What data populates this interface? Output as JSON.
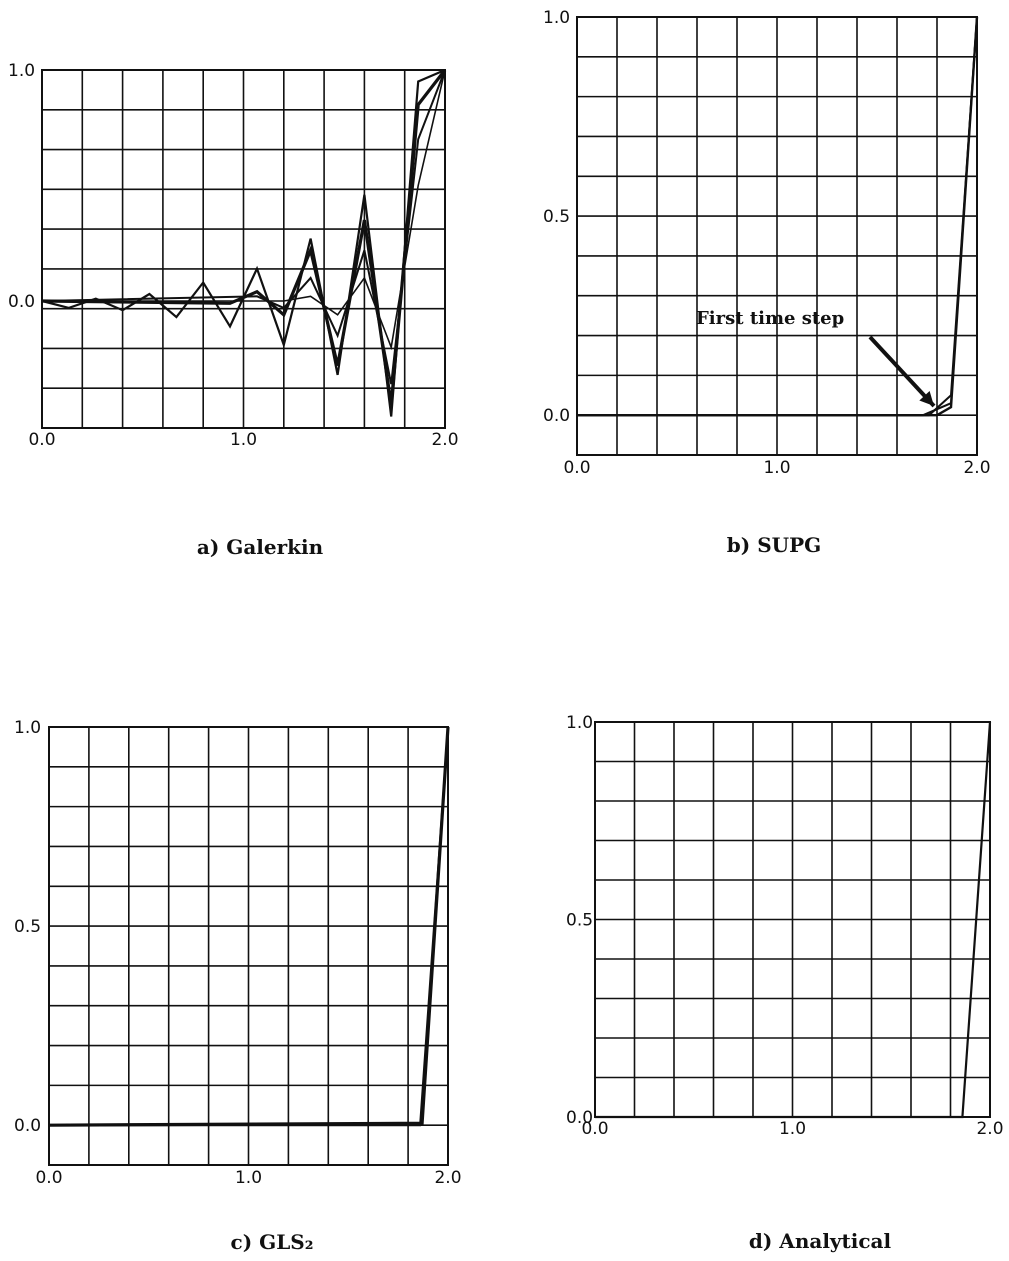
{
  "chart_data": [
    {
      "type": "line",
      "caption": "a) Galerkin",
      "xlim": [
        0.0,
        2.0
      ],
      "ylim": [
        -0.55,
        1.0
      ],
      "x_ticks": [
        "0.0",
        "1.0",
        "2.0"
      ],
      "y_ticks": [
        {
          "value": 1.0,
          "label": "1.0"
        },
        {
          "value": 0.0,
          "label": "0.0"
        }
      ],
      "grid": true,
      "series": [
        {
          "x": [
            0.0,
            0.133,
            0.267,
            0.4,
            0.533,
            0.667,
            0.8,
            0.933,
            1.067,
            1.2,
            1.333,
            1.467,
            1.6,
            1.733,
            1.867,
            2.0
          ],
          "values": [
            0.0,
            -0.03,
            0.01,
            -0.04,
            0.03,
            -0.07,
            0.08,
            -0.11,
            0.14,
            -0.19,
            0.27,
            -0.32,
            0.46,
            -0.5,
            0.95,
            1.0
          ]
        },
        {
          "x": [
            0.0,
            0.933,
            1.067,
            1.2,
            1.333,
            1.467,
            1.6,
            1.733,
            1.867,
            2.0
          ],
          "values": [
            0.0,
            -0.01,
            0.04,
            -0.06,
            0.22,
            -0.28,
            0.35,
            -0.45,
            0.85,
            1.0
          ]
        },
        {
          "x": [
            0.0,
            1.067,
            1.2,
            1.333,
            1.467,
            1.6,
            1.733,
            1.867,
            2.0
          ],
          "values": [
            0.0,
            0.02,
            -0.03,
            0.1,
            -0.15,
            0.22,
            -0.36,
            0.7,
            1.0
          ]
        },
        {
          "x": [
            0.0,
            1.2,
            1.333,
            1.467,
            1.6,
            1.733,
            1.867,
            2.0
          ],
          "values": [
            0.0,
            0.0,
            0.02,
            -0.06,
            0.1,
            -0.2,
            0.5,
            1.0
          ]
        }
      ]
    },
    {
      "type": "line",
      "caption": "b) SUPG",
      "xlim": [
        0.0,
        2.0
      ],
      "ylim": [
        -0.1,
        1.0
      ],
      "x_ticks": [
        "0.0",
        "1.0",
        "2.0"
      ],
      "y_ticks": [
        {
          "value": 1.0,
          "label": "1.0"
        },
        {
          "value": 0.5,
          "label": "0.5"
        },
        {
          "value": 0.0,
          "label": "0.0"
        }
      ],
      "grid": true,
      "annotation": {
        "text": "First time step",
        "points_to": [
          1.82,
          0.02
        ]
      },
      "series": [
        {
          "x": [
            0.0,
            1.73,
            1.87,
            2.0
          ],
          "values": [
            0.0,
            0.0,
            0.03,
            1.0
          ]
        },
        {
          "x": [
            0.0,
            1.76,
            1.87,
            2.0
          ],
          "values": [
            0.0,
            0.0,
            0.05,
            1.0
          ]
        },
        {
          "x": [
            0.0,
            1.8,
            1.87,
            2.0
          ],
          "values": [
            0.0,
            0.0,
            0.02,
            1.0
          ]
        }
      ]
    },
    {
      "type": "line",
      "caption": "c) GLS₂",
      "xlim": [
        0.0,
        2.0
      ],
      "ylim": [
        -0.1,
        1.0
      ],
      "x_ticks": [
        "0.0",
        "1.0",
        "2.0"
      ],
      "y_ticks": [
        {
          "value": 1.0,
          "label": "1.0"
        },
        {
          "value": 0.5,
          "label": "0.5"
        },
        {
          "value": 0.0,
          "label": "0.0"
        }
      ],
      "grid": true,
      "series": [
        {
          "x": [
            0.0,
            1.87,
            2.0
          ],
          "values": [
            0.0,
            0.005,
            1.0
          ]
        },
        {
          "x": [
            0.0,
            1.86,
            2.0
          ],
          "values": [
            0.0,
            0.0,
            1.0
          ]
        }
      ]
    },
    {
      "type": "line",
      "caption": "d) Analytical",
      "xlim": [
        0.0,
        2.0
      ],
      "ylim": [
        0.0,
        1.0
      ],
      "x_ticks": [
        "0.0",
        "1.0",
        "2.0"
      ],
      "y_ticks": [
        {
          "value": 1.0,
          "label": "1.0"
        },
        {
          "value": 0.5,
          "label": "0.5"
        },
        {
          "value": 0.0,
          "label": "0.0"
        }
      ],
      "grid": true,
      "series": [
        {
          "x": [
            0.0,
            1.86,
            2.0
          ],
          "values": [
            0.0,
            0.0,
            1.0
          ]
        }
      ]
    }
  ]
}
